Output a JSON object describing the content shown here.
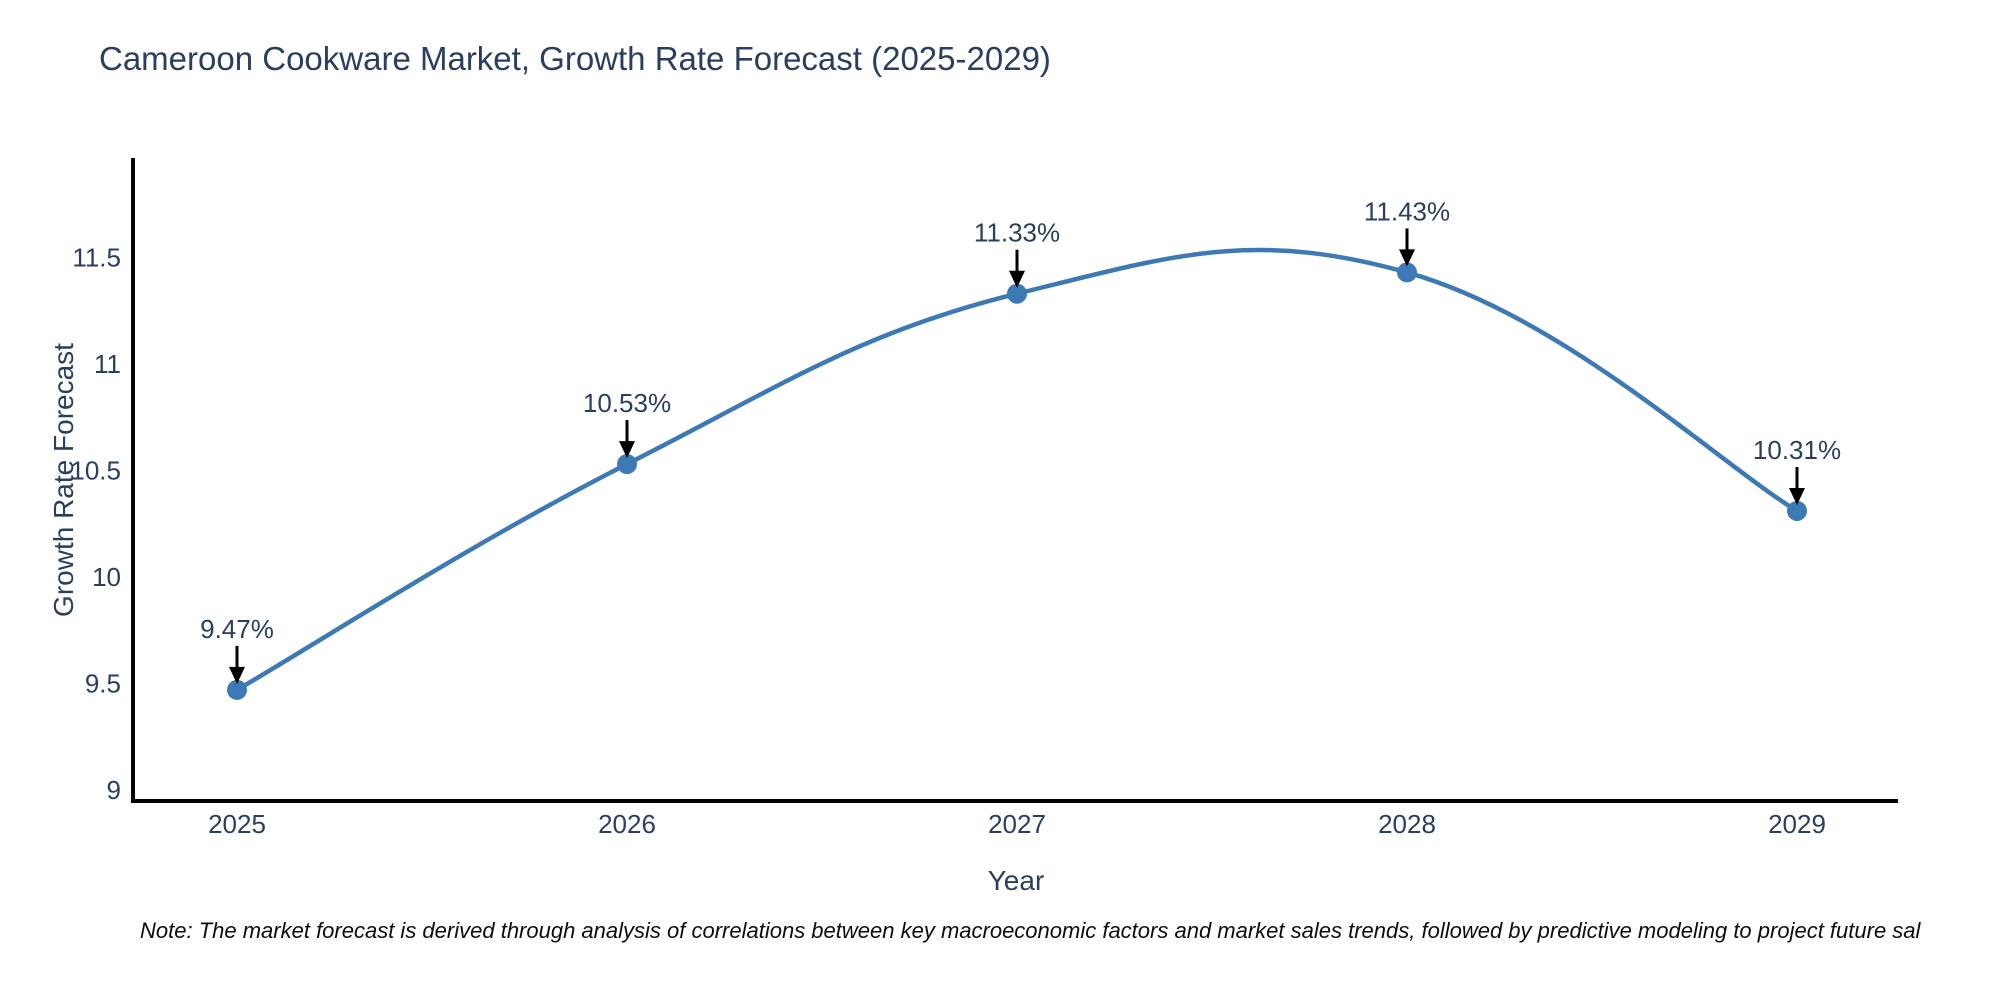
{
  "title": "Cameroon Cookware Market, Growth Rate Forecast (2025-2029)",
  "note": "Note: The market forecast is derived through analysis of correlations between key macroeconomic factors and market sales trends, followed by predictive modeling to project future sal",
  "chart_data": {
    "type": "line",
    "line_shape": "spline",
    "title": "Cameroon Cookware Market, Growth Rate Forecast (2025-2029)",
    "xlabel": "Year",
    "ylabel": "Growth Rate Forecast",
    "x": [
      2025,
      2026,
      2027,
      2028,
      2029
    ],
    "xticks": [
      "2025",
      "2026",
      "2027",
      "2028",
      "2029"
    ],
    "series": [
      {
        "name": "Growth Rate Forecast",
        "values": [
          9.47,
          10.53,
          11.33,
          11.43,
          10.31
        ]
      }
    ],
    "annotations": [
      "9.47%",
      "10.53%",
      "11.33%",
      "11.43%",
      "10.31%"
    ],
    "yticks": [
      9,
      9.5,
      10,
      10.5,
      11,
      11.5
    ],
    "ylim": [
      8.95,
      12.0
    ],
    "grid": false,
    "legend": false,
    "colors": {
      "line": "#3d7ab5",
      "marker": "#3d7ab5",
      "axis": "#000000",
      "tick_text": "#2a3f5f",
      "annotation_text": "#2a3f5f",
      "arrow": "#000000",
      "title_text": "#2a3f5f",
      "note_text": "#0d0d0d",
      "background": "#ffffff"
    }
  }
}
